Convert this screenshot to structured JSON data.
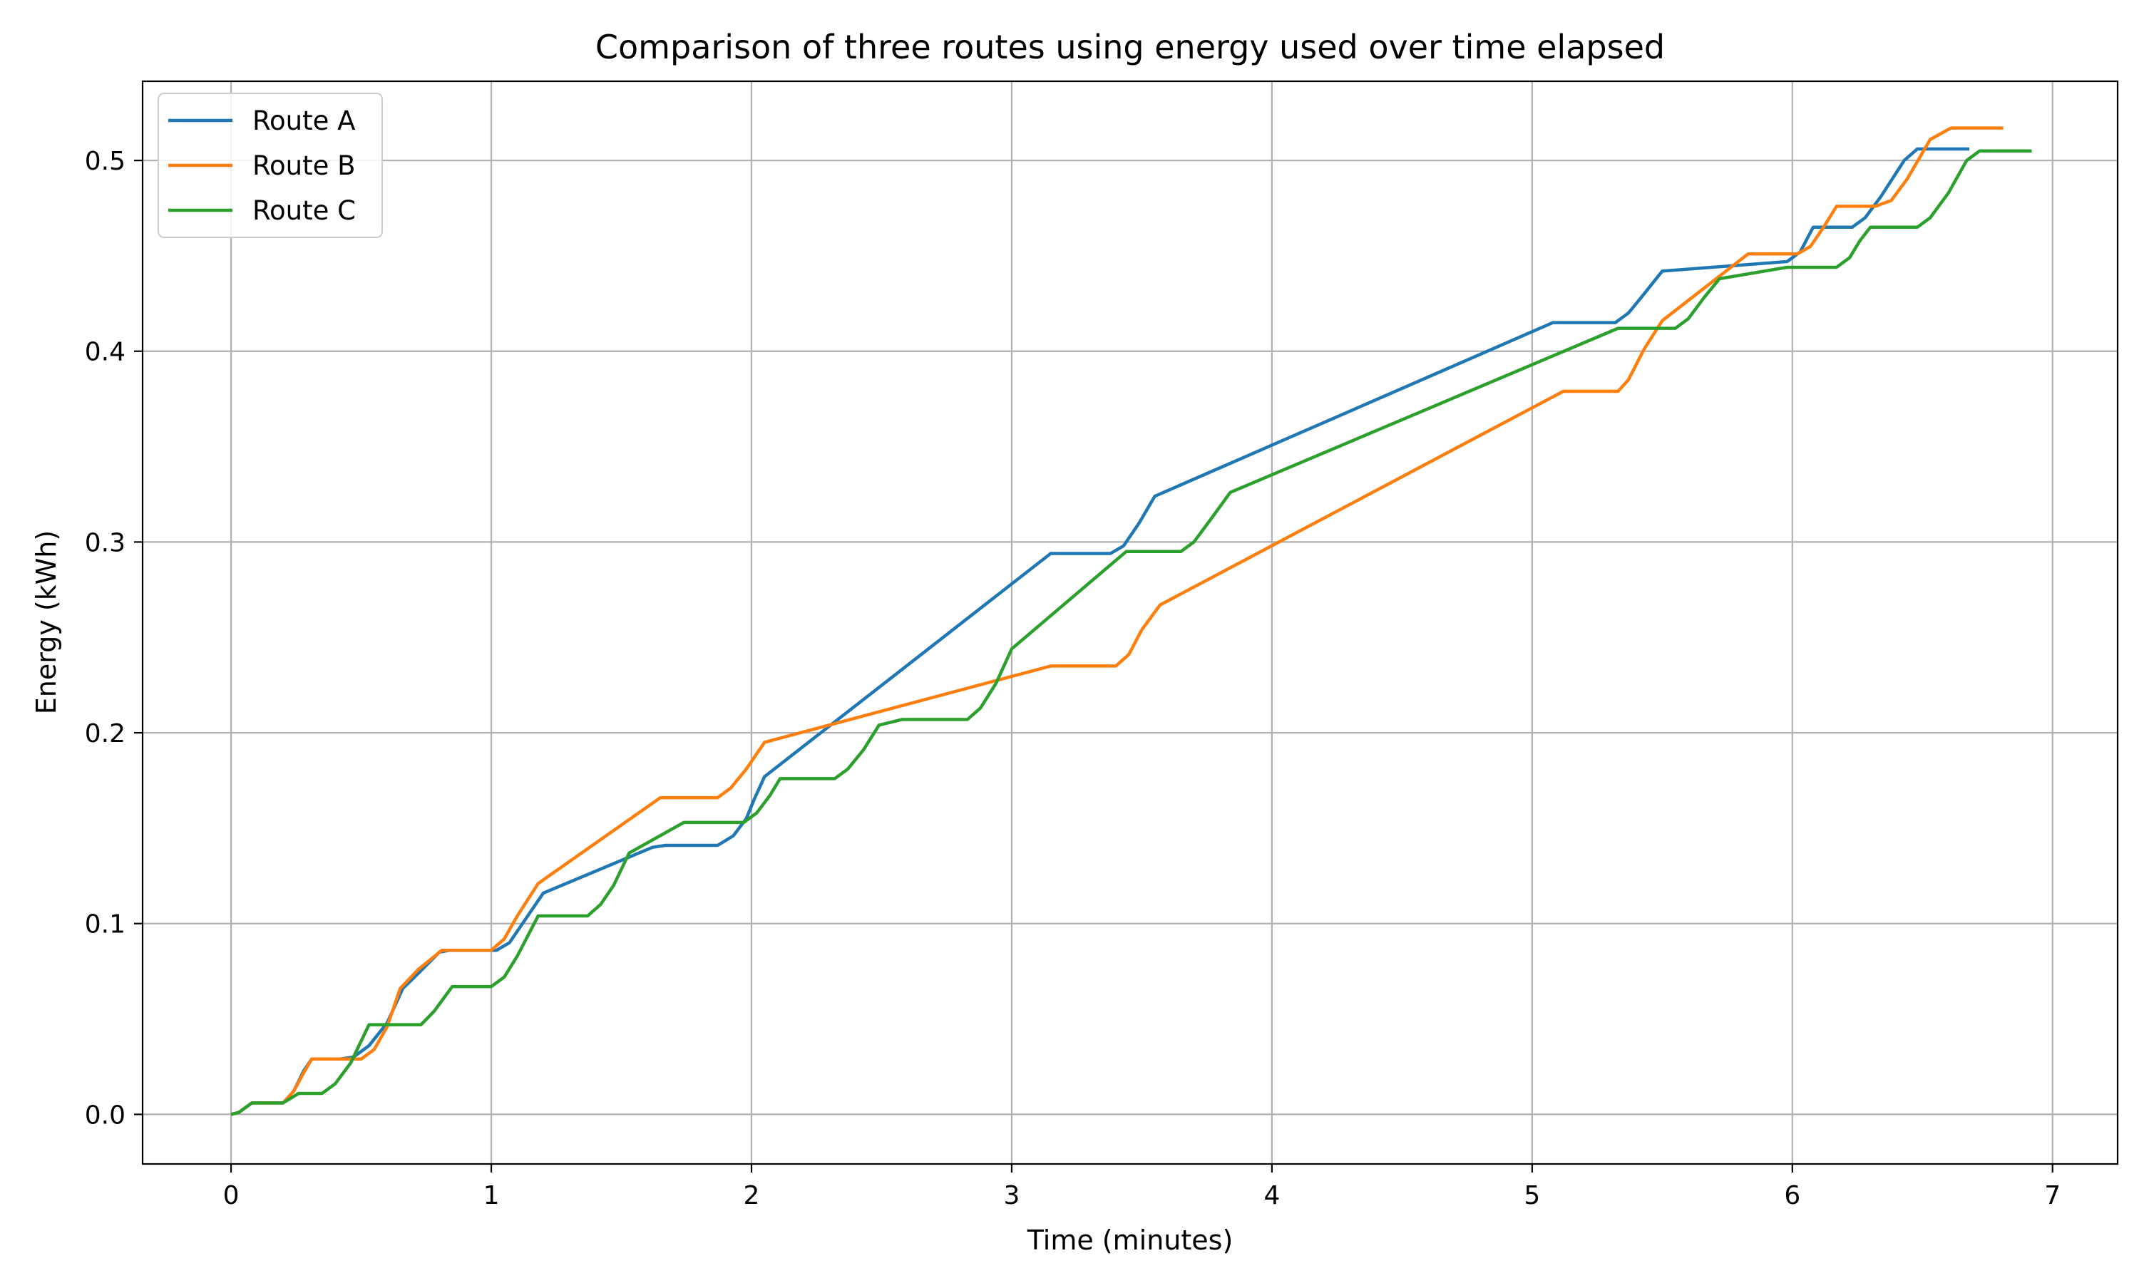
{
  "chart_data": {
    "type": "line",
    "title": "Comparison of three routes using energy used over time elapsed",
    "xlabel": "Time (minutes)",
    "ylabel": "Energy (kWh)",
    "xlim": [
      -0.34,
      7.25
    ],
    "ylim": [
      -0.026,
      0.5415
    ],
    "x_ticks": [
      0,
      1,
      2,
      3,
      4,
      5,
      6,
      7
    ],
    "y_ticks": [
      0.0,
      0.1,
      0.2,
      0.3,
      0.4,
      0.5
    ],
    "x_tick_labels": [
      "0",
      "1",
      "2",
      "3",
      "4",
      "5",
      "6",
      "7"
    ],
    "y_tick_labels": [
      "0.0",
      "0.1",
      "0.2",
      "0.3",
      "0.4",
      "0.5"
    ],
    "grid": true,
    "legend_position": "top-left",
    "series": [
      {
        "name": "Route A",
        "color": "#1f77b4",
        "points": [
          [
            0.0,
            0.0
          ],
          [
            0.03,
            0.001
          ],
          [
            0.08,
            0.006
          ],
          [
            0.2,
            0.006
          ],
          [
            0.24,
            0.012
          ],
          [
            0.28,
            0.023
          ],
          [
            0.31,
            0.029
          ],
          [
            0.42,
            0.029
          ],
          [
            0.47,
            0.03
          ],
          [
            0.53,
            0.036
          ],
          [
            0.6,
            0.048
          ],
          [
            0.66,
            0.066
          ],
          [
            0.72,
            0.074
          ],
          [
            0.8,
            0.085
          ],
          [
            0.84,
            0.086
          ],
          [
            1.02,
            0.086
          ],
          [
            1.07,
            0.09
          ],
          [
            1.13,
            0.102
          ],
          [
            1.2,
            0.116
          ],
          [
            1.62,
            0.14
          ],
          [
            1.67,
            0.141
          ],
          [
            1.87,
            0.141
          ],
          [
            1.93,
            0.146
          ],
          [
            1.98,
            0.155
          ],
          [
            2.01,
            0.165
          ],
          [
            2.05,
            0.177
          ],
          [
            3.15,
            0.294
          ],
          [
            3.38,
            0.294
          ],
          [
            3.43,
            0.298
          ],
          [
            3.49,
            0.31
          ],
          [
            3.55,
            0.324
          ],
          [
            5.08,
            0.415
          ],
          [
            5.32,
            0.415
          ],
          [
            5.37,
            0.42
          ],
          [
            5.43,
            0.43
          ],
          [
            5.5,
            0.442
          ],
          [
            5.98,
            0.447
          ],
          [
            6.03,
            0.452
          ],
          [
            6.08,
            0.465
          ],
          [
            6.23,
            0.465
          ],
          [
            6.28,
            0.47
          ],
          [
            6.34,
            0.481
          ],
          [
            6.43,
            0.5
          ],
          [
            6.48,
            0.506
          ],
          [
            6.68,
            0.506
          ]
        ]
      },
      {
        "name": "Route B",
        "color": "#ff7f0e",
        "points": [
          [
            0.0,
            0.0
          ],
          [
            0.03,
            0.001
          ],
          [
            0.08,
            0.006
          ],
          [
            0.2,
            0.006
          ],
          [
            0.24,
            0.012
          ],
          [
            0.28,
            0.022
          ],
          [
            0.31,
            0.029
          ],
          [
            0.5,
            0.029
          ],
          [
            0.55,
            0.034
          ],
          [
            0.6,
            0.046
          ],
          [
            0.65,
            0.066
          ],
          [
            0.72,
            0.076
          ],
          [
            0.81,
            0.086
          ],
          [
            1.0,
            0.086
          ],
          [
            1.05,
            0.092
          ],
          [
            1.1,
            0.104
          ],
          [
            1.18,
            0.121
          ],
          [
            1.65,
            0.166
          ],
          [
            1.87,
            0.166
          ],
          [
            1.92,
            0.171
          ],
          [
            1.98,
            0.181
          ],
          [
            2.05,
            0.195
          ],
          [
            3.15,
            0.235
          ],
          [
            3.4,
            0.235
          ],
          [
            3.45,
            0.241
          ],
          [
            3.5,
            0.254
          ],
          [
            3.57,
            0.267
          ],
          [
            5.12,
            0.379
          ],
          [
            5.33,
            0.379
          ],
          [
            5.37,
            0.385
          ],
          [
            5.43,
            0.401
          ],
          [
            5.5,
            0.416
          ],
          [
            5.83,
            0.451
          ],
          [
            6.02,
            0.451
          ],
          [
            6.07,
            0.455
          ],
          [
            6.12,
            0.465
          ],
          [
            6.17,
            0.476
          ],
          [
            6.32,
            0.476
          ],
          [
            6.38,
            0.479
          ],
          [
            6.44,
            0.49
          ],
          [
            6.53,
            0.511
          ],
          [
            6.61,
            0.517
          ],
          [
            6.81,
            0.517
          ]
        ]
      },
      {
        "name": "Route C",
        "color": "#2ca02c",
        "points": [
          [
            0.0,
            0.0
          ],
          [
            0.03,
            0.001
          ],
          [
            0.08,
            0.006
          ],
          [
            0.2,
            0.006
          ],
          [
            0.26,
            0.011
          ],
          [
            0.35,
            0.011
          ],
          [
            0.4,
            0.016
          ],
          [
            0.46,
            0.027
          ],
          [
            0.53,
            0.047
          ],
          [
            0.73,
            0.047
          ],
          [
            0.78,
            0.054
          ],
          [
            0.85,
            0.067
          ],
          [
            1.0,
            0.067
          ],
          [
            1.05,
            0.072
          ],
          [
            1.1,
            0.083
          ],
          [
            1.18,
            0.104
          ],
          [
            1.37,
            0.104
          ],
          [
            1.42,
            0.11
          ],
          [
            1.47,
            0.12
          ],
          [
            1.53,
            0.137
          ],
          [
            1.74,
            0.153
          ],
          [
            1.97,
            0.153
          ],
          [
            2.02,
            0.158
          ],
          [
            2.07,
            0.167
          ],
          [
            2.11,
            0.176
          ],
          [
            2.32,
            0.176
          ],
          [
            2.37,
            0.181
          ],
          [
            2.43,
            0.191
          ],
          [
            2.49,
            0.204
          ],
          [
            2.58,
            0.207
          ],
          [
            2.83,
            0.207
          ],
          [
            2.88,
            0.213
          ],
          [
            2.94,
            0.226
          ],
          [
            3.0,
            0.244
          ],
          [
            3.44,
            0.295
          ],
          [
            3.65,
            0.295
          ],
          [
            3.7,
            0.3
          ],
          [
            3.76,
            0.311
          ],
          [
            3.84,
            0.326
          ],
          [
            5.33,
            0.412
          ],
          [
            5.55,
            0.412
          ],
          [
            5.6,
            0.417
          ],
          [
            5.66,
            0.428
          ],
          [
            5.72,
            0.438
          ],
          [
            5.98,
            0.444
          ],
          [
            6.17,
            0.444
          ],
          [
            6.22,
            0.449
          ],
          [
            6.26,
            0.458
          ],
          [
            6.3,
            0.465
          ],
          [
            6.48,
            0.465
          ],
          [
            6.53,
            0.47
          ],
          [
            6.6,
            0.483
          ],
          [
            6.67,
            0.5
          ],
          [
            6.72,
            0.505
          ],
          [
            6.92,
            0.505
          ]
        ]
      }
    ]
  }
}
